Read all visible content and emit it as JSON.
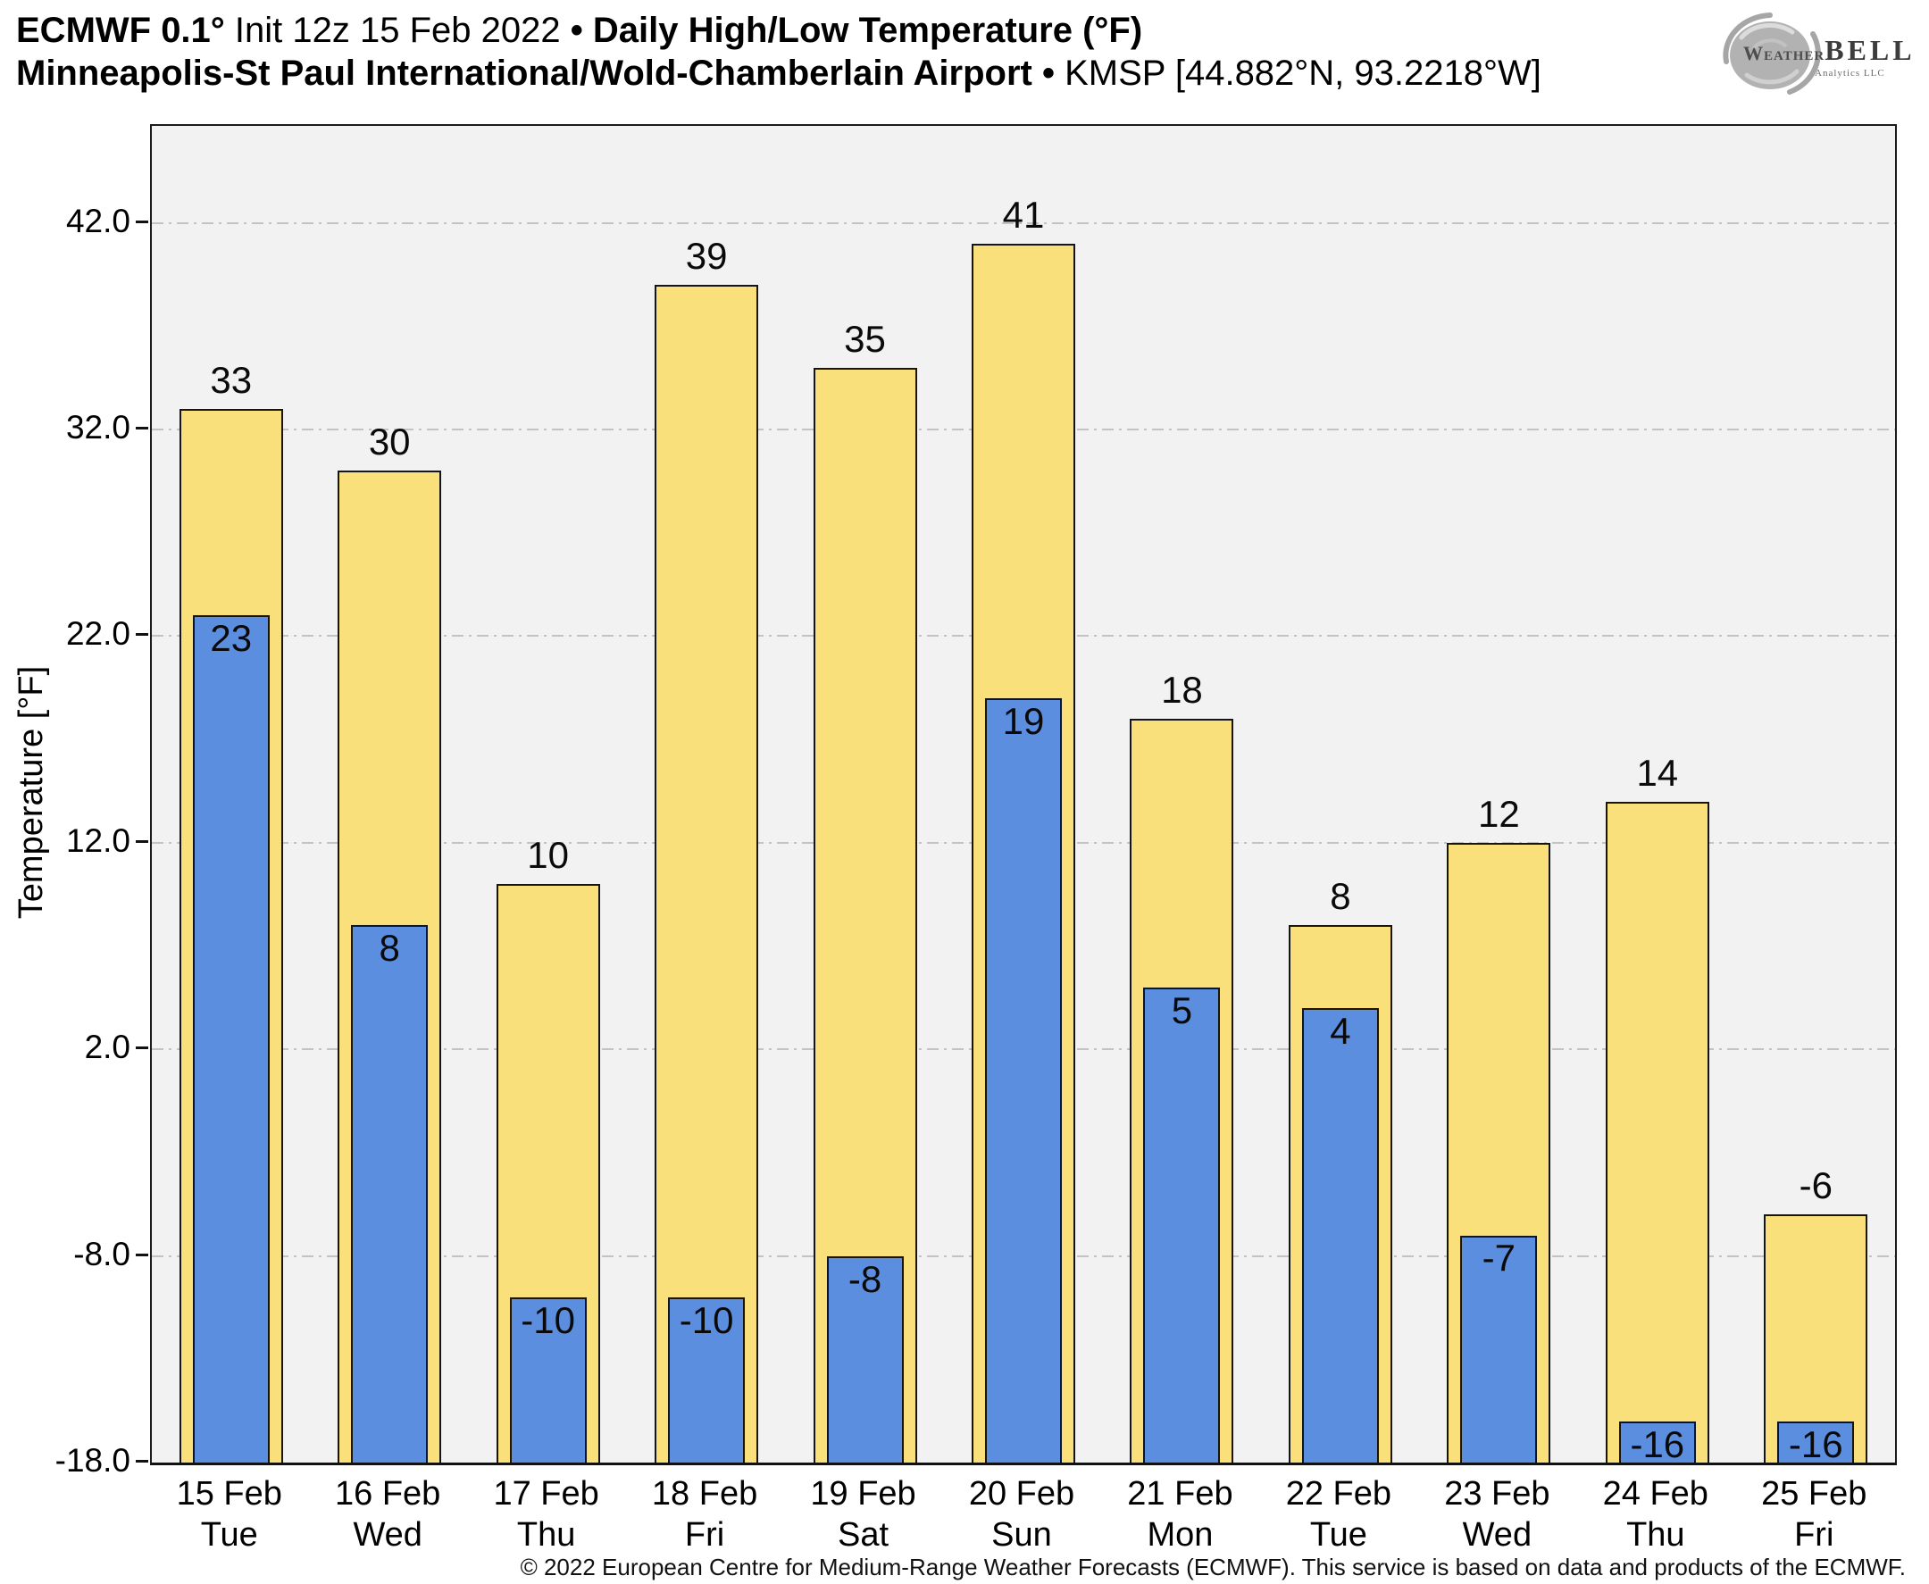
{
  "header": {
    "line1": {
      "product": "ECMWF 0.1°",
      "init": " Init 12z 15 Feb 2022 ",
      "sep": "• ",
      "metric": "Daily High/Low Temperature (°F)"
    },
    "line2": {
      "station": "Minneapolis-St Paul International/Wold-Chamberlain Airport ",
      "sep": "• ",
      "id": " KMSP [44.882°N, 93.2218°W]"
    }
  },
  "logo": {
    "word_weather": "Weather",
    "word_bell": "BELL",
    "tagline": "Analytics LLC"
  },
  "chart_data": {
    "type": "bar",
    "title": "ECMWF 0.1° Init 12z 15 Feb 2022 • Daily High/Low Temperature (°F)",
    "subtitle": "Minneapolis-St Paul International/Wold-Chamberlain Airport • KMSP [44.882°N, 93.2218°W]",
    "ylabel": "Temperature [°F]",
    "xlabel": "",
    "ylim": [
      -18,
      46.7
    ],
    "yticks": [
      {
        "value": 42,
        "label": "42.0"
      },
      {
        "value": 32,
        "label": "32.0"
      },
      {
        "value": 22,
        "label": "22.0"
      },
      {
        "value": 12,
        "label": "12.0"
      },
      {
        "value": 2,
        "label": "2.0"
      },
      {
        "value": -8,
        "label": "-8.0"
      },
      {
        "value": -18,
        "label": "-18.0"
      }
    ],
    "grid": {
      "horizontal": true,
      "style": "dash-dot",
      "color": "#c3c3c3"
    },
    "legend_position": "none",
    "plot_background": "#f2f2f2",
    "categories": [
      {
        "date": "15 Feb",
        "weekday": "Tue"
      },
      {
        "date": "16 Feb",
        "weekday": "Wed"
      },
      {
        "date": "17 Feb",
        "weekday": "Thu"
      },
      {
        "date": "18 Feb",
        "weekday": "Fri"
      },
      {
        "date": "19 Feb",
        "weekday": "Sat"
      },
      {
        "date": "20 Feb",
        "weekday": "Sun"
      },
      {
        "date": "21 Feb",
        "weekday": "Mon"
      },
      {
        "date": "22 Feb",
        "weekday": "Tue"
      },
      {
        "date": "23 Feb",
        "weekday": "Wed"
      },
      {
        "date": "24 Feb",
        "weekday": "Thu"
      },
      {
        "date": "25 Feb",
        "weekday": "Fri"
      }
    ],
    "series": [
      {
        "name": "Daily High",
        "color": "#fae07a",
        "values": [
          33,
          30,
          10,
          39,
          35,
          41,
          18,
          8,
          12,
          14,
          -6
        ]
      },
      {
        "name": "Daily Low",
        "color": "#5c8ee0",
        "values": [
          23,
          8,
          -10,
          -10,
          -8,
          19,
          5,
          4,
          -7,
          -16,
          -16
        ]
      }
    ]
  },
  "footer": {
    "copyright": "© 2022 European Centre for Medium-Range Weather Forecasts (ECMWF). This service is based on data and products of the ECMWF."
  }
}
